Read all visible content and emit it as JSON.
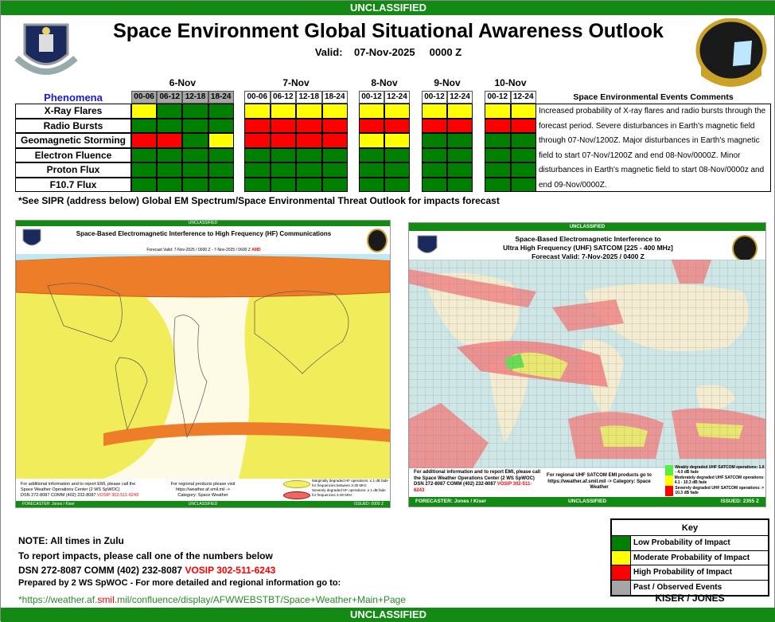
{
  "classification": "UNCLASSIFIED",
  "header": {
    "title": "Space Environment Global Situational Awareness Outlook",
    "valid_label": "Valid:",
    "valid_date": "07-Nov-2025",
    "valid_time": "0000 Z"
  },
  "colors": {
    "G": "#008000",
    "Y": "#ffff00",
    "R": "#ff0000",
    "past": "#a6a6a6",
    "banner": "#138a13"
  },
  "days": [
    {
      "label": "6-Nov",
      "past": true,
      "periods": [
        "00-06",
        "06-12",
        "12-18",
        "18-24"
      ]
    },
    {
      "label": "7-Nov",
      "past": false,
      "periods": [
        "00-06",
        "06-12",
        "12-18",
        "18-24"
      ]
    },
    {
      "label": "8-Nov",
      "past": false,
      "periods": [
        "00-12",
        "12-24"
      ]
    },
    {
      "label": "9-Nov",
      "past": false,
      "periods": [
        "00-12",
        "12-24"
      ]
    },
    {
      "label": "10-Nov",
      "past": false,
      "periods": [
        "00-12",
        "12-24"
      ]
    }
  ],
  "phenomena_label": "Phenomena",
  "phenomena": [
    {
      "name": "X-Ray Flares",
      "status": [
        "Y",
        "G",
        "G",
        "G",
        "Y",
        "Y",
        "Y",
        "Y",
        "Y",
        "Y",
        "Y",
        "Y",
        "Y",
        "Y"
      ]
    },
    {
      "name": "Radio Bursts",
      "status": [
        "G",
        "G",
        "G",
        "G",
        "R",
        "R",
        "R",
        "R",
        "R",
        "R",
        "R",
        "R",
        "R",
        "R"
      ]
    },
    {
      "name": "Geomagnetic Storming",
      "status": [
        "R",
        "R",
        "G",
        "Y",
        "R",
        "R",
        "R",
        "R",
        "Y",
        "Y",
        "G",
        "G",
        "G",
        "G"
      ]
    },
    {
      "name": "Electron Fluence",
      "status": [
        "G",
        "G",
        "G",
        "G",
        "G",
        "G",
        "G",
        "G",
        "G",
        "G",
        "G",
        "G",
        "G",
        "G"
      ]
    },
    {
      "name": "Proton Flux",
      "status": [
        "G",
        "G",
        "G",
        "G",
        "G",
        "G",
        "G",
        "G",
        "G",
        "G",
        "G",
        "G",
        "G",
        "G"
      ]
    },
    {
      "name": "F10.7 Flux",
      "status": [
        "G",
        "G",
        "G",
        "G",
        "G",
        "G",
        "G",
        "G",
        "G",
        "G",
        "G",
        "G",
        "G",
        "G"
      ]
    }
  ],
  "comments": {
    "title": "Space Environmental Events Comments",
    "text": "Increased probability of X-ray flares and radio bursts through the forecast period. Severe disturbances in Earth's magnetic field through 07-Nov/1200Z. Major disturbances in Earth's magnetic field to start 07-Nov/1200Z and end 08-Nov/0000Z. Minor disturbances in Earth's magnetic field to start 08-Nov/0000z and end 09-Nov/0000Z."
  },
  "sipr_note": "*See SIPR (address below) Global EM Spectrum/Space Environmental Threat Outlook for impacts forecast",
  "hf_map": {
    "classification": "UNCLASSIFIED",
    "title": "Space-Based Electromagnetic Interference to High Frequency (HF) Communications",
    "forecast": "Forecast Valid:    7-Nov-2025 / 0000 Z  -  7-Nov-2025    /  0600 Z",
    "amd": "AMD",
    "info": [
      "For additional information and to report EMI, please call the",
      "Space Weather Operations Center (2 WS SpWOC)",
      "DSN 272-8087   COMM (402) 232-8087"
    ],
    "vosip": "VOSIP 302-511-6243",
    "regional": [
      "For regional products please visit",
      "https://weather.af.smil.mil ->",
      "Category: Space Weather"
    ],
    "legend": [
      "Marginally degraded HF operations: ≤ 1 dB fade for frequencies between 3-30 MHz",
      "Severely degraded HF operations: ≥ 1 dB fade for frequencies 3-30 MHz"
    ],
    "forecaster": "FORECASTER:   Jones  /  Kiser",
    "issued": "ISSUED:  0000 Z"
  },
  "uhf_map": {
    "classification": "UNCLASSIFIED",
    "title1": "Space-Based Electromagnetic Interference to",
    "title2": "Ultra High Frequency (UHF) SATCOM  [225 - 400 MHz]",
    "forecast": "Forecast Valid:    7-Nov-2025   /    0400 Z",
    "info": "For additional information and to report EMI, please call the Space Weather Operations Center (2 WS SpWOC)  DSN 272-8087 COMM (402) 232-8087",
    "vosip": "VOSIP 302-511-6243",
    "regional": "For regional UHF SATCOM EMI products go to https://weather.af.smil.mil -> Category: Space Weather",
    "legend": [
      {
        "color": "#55ee44",
        "text": "Weakly degraded UHF SATCOM operations: 1.6 - 4.0 dB fade"
      },
      {
        "color": "#ffff00",
        "text": "Moderately degraded UHF SATCOM operations: 4.1 - 10.3 dB fade"
      },
      {
        "color": "#ff0000",
        "text": "Severely degraded UHF SATCOM operations: > 10.3 dB fade"
      }
    ],
    "forecaster": "FORECASTER:  Jones  /  Kiser",
    "issued": "ISSUED:  2355 Z"
  },
  "notes": {
    "zulu": "NOTE: All times in Zulu",
    "report": "To report impacts, please call one of the numbers below",
    "phones": "DSN 272-8087 COMM (402) 232-8087",
    "vosip": "VOSIP 302-511-6243",
    "prepared": "Prepared by 2 WS SpWOC - For more detailed and regional information go to:",
    "url_pre": "*https://weather.af.",
    "url_smil": "smil",
    "url_post": ".mil/confluence/display/AFWWEBSTBT/Space+Weather+Main+Page"
  },
  "key": {
    "title": "Key",
    "items": [
      {
        "color": "#008000",
        "label": "Low Probability of Impact"
      },
      {
        "color": "#ffff00",
        "label": "Moderate Probability of Impact"
      },
      {
        "color": "#ff0000",
        "label": "High Probability of Impact"
      },
      {
        "color": "#a6a6a6",
        "label": "Past / Observed Events"
      }
    ],
    "forecasters": "KISER  /  JONES"
  }
}
